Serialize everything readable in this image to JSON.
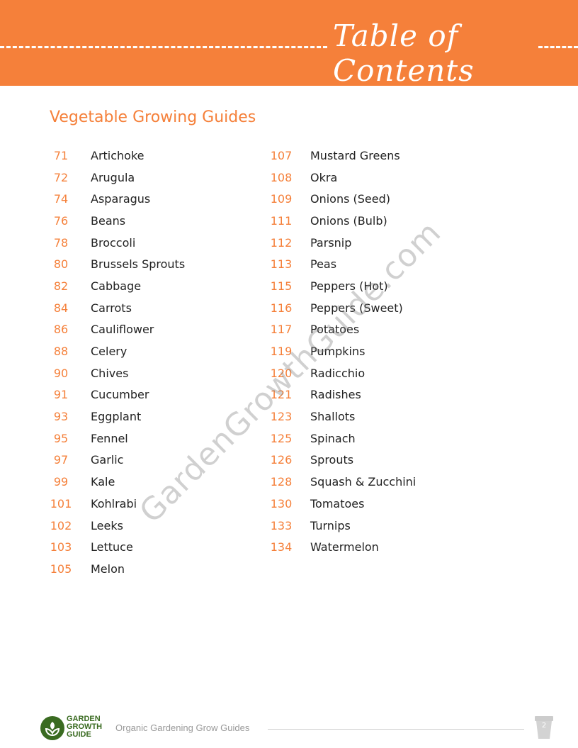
{
  "header": {
    "title": "Table of Contents",
    "accent": "#F5803A"
  },
  "section_title": "Vegetable Growing Guides",
  "left": [
    [
      "71",
      "Artichoke"
    ],
    [
      "72",
      "Arugula"
    ],
    [
      "74",
      "Asparagus"
    ],
    [
      "76",
      "Beans"
    ],
    [
      "78",
      "Broccoli"
    ],
    [
      "80",
      "Brussels Sprouts"
    ],
    [
      "82",
      "Cabbage"
    ],
    [
      "84",
      "Carrots"
    ],
    [
      "86",
      "Cauliflower"
    ],
    [
      "88",
      "Celery"
    ],
    [
      "90",
      "Chives"
    ],
    [
      "91",
      "Cucumber"
    ],
    [
      "93",
      "Eggplant"
    ],
    [
      "95",
      "Fennel"
    ],
    [
      "97",
      "Garlic"
    ],
    [
      "99",
      "Kale"
    ],
    [
      "101",
      "Kohlrabi"
    ],
    [
      "102",
      "Leeks"
    ],
    [
      "103",
      "Lettuce"
    ],
    [
      "105",
      "Melon"
    ]
  ],
  "right": [
    [
      "107",
      "Mustard Greens"
    ],
    [
      "108",
      "Okra"
    ],
    [
      "109",
      "Onions (Seed)"
    ],
    [
      "111",
      "Onions (Bulb)"
    ],
    [
      "112",
      "Parsnip"
    ],
    [
      "113",
      "Peas"
    ],
    [
      "115",
      "Peppers (Hot)"
    ],
    [
      "116",
      "Peppers (Sweet)"
    ],
    [
      "117",
      "Potatoes"
    ],
    [
      "119",
      "Pumpkins"
    ],
    [
      "120",
      "Radicchio"
    ],
    [
      "121",
      "Radishes"
    ],
    [
      "123",
      "Shallots"
    ],
    [
      "125",
      "Spinach"
    ],
    [
      "126",
      "Sprouts"
    ],
    [
      "128",
      "Squash & Zucchini"
    ],
    [
      "130",
      "Tomatoes"
    ],
    [
      "133",
      "Turnips"
    ],
    [
      "134",
      "Watermelon"
    ]
  ],
  "watermark": "GardenGrowthGuide.com",
  "footer": {
    "logo_text": "GARDEN GROWTH GUIDE",
    "tagline": "Organic Gardening Grow Guides",
    "page": "2"
  }
}
